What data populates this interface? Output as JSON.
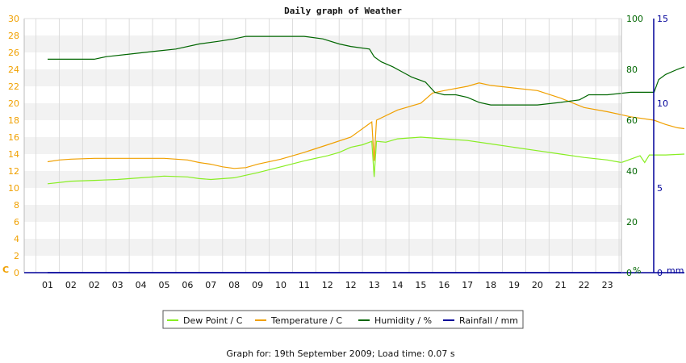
{
  "chart_data": {
    "type": "line",
    "title": "Daily graph of Weather",
    "x_tick_labels": [
      "01",
      "02",
      "02",
      "03",
      "04",
      "05",
      "06",
      "07",
      "08",
      "09",
      "10",
      "11",
      "12",
      "12",
      "13",
      "14",
      "15",
      "16",
      "17",
      "18",
      "19",
      "20",
      "21",
      "22",
      "23"
    ],
    "axes": {
      "left": {
        "unit": "C",
        "min": 0,
        "max": 30,
        "ticks": [
          0,
          2,
          4,
          6,
          8,
          10,
          12,
          14,
          16,
          18,
          20,
          22,
          24,
          26,
          28,
          30
        ],
        "color": "#f0a000"
      },
      "right1": {
        "unit": "%",
        "min": 0,
        "max": 100,
        "ticks": [
          0,
          20,
          40,
          60,
          80,
          100
        ],
        "color": "#006600"
      },
      "right2": {
        "unit": "mm",
        "min": 0,
        "max": 15,
        "ticks": [
          0,
          5,
          10,
          15
        ],
        "color": "#000099"
      }
    },
    "series": [
      {
        "name": "Dew Point / C",
        "axis": "left",
        "color": "#88ee22",
        "points": [
          [
            0,
            10.5
          ],
          [
            1,
            10.8
          ],
          [
            2,
            10.9
          ],
          [
            3,
            11.0
          ],
          [
            4,
            11.2
          ],
          [
            5,
            11.4
          ],
          [
            6,
            11.3
          ],
          [
            6.5,
            11.1
          ],
          [
            7,
            11.0
          ],
          [
            8,
            11.2
          ],
          [
            9,
            11.8
          ],
          [
            10,
            12.5
          ],
          [
            11,
            13.2
          ],
          [
            12,
            13.8
          ],
          [
            12.5,
            14.2
          ],
          [
            13,
            14.8
          ],
          [
            13.5,
            15.1
          ],
          [
            13.9,
            15.5
          ],
          [
            14.0,
            11.3
          ],
          [
            14.1,
            15.5
          ],
          [
            14.5,
            15.4
          ],
          [
            15,
            15.8
          ],
          [
            16,
            16.0
          ],
          [
            17,
            15.8
          ],
          [
            18,
            15.6
          ],
          [
            19,
            15.2
          ],
          [
            20,
            14.8
          ],
          [
            21,
            14.4
          ],
          [
            22,
            14.0
          ],
          [
            23,
            13.6
          ],
          [
            24,
            13.3
          ],
          [
            24.6,
            13.0
          ],
          [
            25.4,
            13.8
          ],
          [
            25.6,
            13.0
          ],
          [
            25.8,
            13.9
          ],
          [
            26.5,
            13.9
          ],
          [
            27.3,
            14.0
          ]
        ]
      },
      {
        "name": "Temperature / C",
        "axis": "left",
        "color": "#f0a000",
        "points": [
          [
            0,
            13.1
          ],
          [
            0.5,
            13.3
          ],
          [
            1,
            13.4
          ],
          [
            2,
            13.5
          ],
          [
            3,
            13.5
          ],
          [
            4,
            13.5
          ],
          [
            5,
            13.5
          ],
          [
            6,
            13.3
          ],
          [
            6.5,
            13.0
          ],
          [
            7,
            12.8
          ],
          [
            7.5,
            12.5
          ],
          [
            8,
            12.3
          ],
          [
            8.5,
            12.4
          ],
          [
            9,
            12.8
          ],
          [
            10,
            13.4
          ],
          [
            11,
            14.2
          ],
          [
            12,
            15.1
          ],
          [
            13,
            16.0
          ],
          [
            13.9,
            17.8
          ],
          [
            14.0,
            13.2
          ],
          [
            14.1,
            18.0
          ],
          [
            15,
            19.2
          ],
          [
            16,
            20.0
          ],
          [
            16.5,
            21.2
          ],
          [
            17,
            21.5
          ],
          [
            18,
            22.0
          ],
          [
            18.5,
            22.4
          ],
          [
            19,
            22.1
          ],
          [
            20,
            21.8
          ],
          [
            21,
            21.5
          ],
          [
            22,
            20.6
          ],
          [
            23,
            19.5
          ],
          [
            24,
            19.0
          ],
          [
            25,
            18.4
          ],
          [
            26,
            18.0
          ],
          [
            26.5,
            17.5
          ],
          [
            27,
            17.1
          ],
          [
            27.3,
            17.0
          ]
        ]
      },
      {
        "name": "Humidity / %",
        "axis": "right1",
        "color": "#006600",
        "points": [
          [
            0,
            84
          ],
          [
            2,
            84
          ],
          [
            2.5,
            85
          ],
          [
            3.5,
            86
          ],
          [
            4.5,
            87
          ],
          [
            5.5,
            88
          ],
          [
            6.5,
            90
          ],
          [
            7.3,
            91
          ],
          [
            8,
            92
          ],
          [
            8.5,
            93
          ],
          [
            9,
            93
          ],
          [
            10,
            93
          ],
          [
            11,
            93
          ],
          [
            11.8,
            92
          ],
          [
            12.5,
            90
          ],
          [
            13,
            89
          ],
          [
            13.8,
            88
          ],
          [
            14.0,
            85
          ],
          [
            14.3,
            83
          ],
          [
            14.8,
            81
          ],
          [
            15.2,
            79
          ],
          [
            15.6,
            77
          ],
          [
            16.2,
            75
          ],
          [
            16.6,
            71
          ],
          [
            17,
            70
          ],
          [
            17.5,
            70
          ],
          [
            18,
            69
          ],
          [
            18.5,
            67
          ],
          [
            19,
            66
          ],
          [
            20,
            66
          ],
          [
            21,
            66
          ],
          [
            22,
            67
          ],
          [
            22.8,
            68
          ],
          [
            23.2,
            70
          ],
          [
            24,
            70
          ],
          [
            25,
            71
          ],
          [
            26,
            71
          ],
          [
            26.2,
            76
          ],
          [
            26.5,
            78
          ],
          [
            27,
            80
          ],
          [
            27.3,
            81
          ]
        ]
      },
      {
        "name": "Rainfall / mm",
        "axis": "right2",
        "color": "#000099",
        "points": [
          [
            0,
            0
          ],
          [
            27.3,
            0
          ]
        ]
      }
    ],
    "legend": {
      "position": "bottom",
      "entries": [
        "Dew Point / C",
        "Temperature / C",
        "Humidity / %",
        "Rainfall / mm"
      ]
    },
    "grid": true,
    "footer": "Graph for: 19th September 2009; Load time: 0.07 s"
  }
}
